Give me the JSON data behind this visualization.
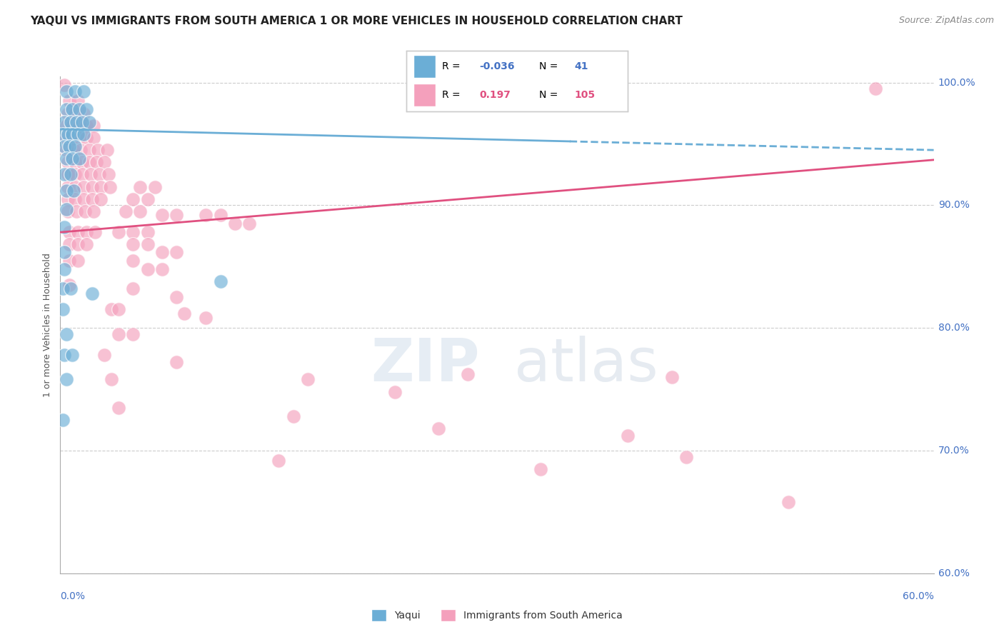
{
  "title": "YAQUI VS IMMIGRANTS FROM SOUTH AMERICA 1 OR MORE VEHICLES IN HOUSEHOLD CORRELATION CHART",
  "source": "Source: ZipAtlas.com",
  "ylabel_label": "1 or more Vehicles in Household",
  "legend_label_blue": "Yaqui",
  "legend_label_pink": "Immigrants from South America",
  "R_blue": -0.036,
  "N_blue": 41,
  "R_pink": 0.197,
  "N_pink": 105,
  "xmin": 0.0,
  "xmax": 0.6,
  "ymin": 0.6,
  "ymax": 1.005,
  "blue_color": "#6baed6",
  "pink_color": "#f4a0bc",
  "blue_line": [
    [
      0.0,
      0.962
    ],
    [
      0.6,
      0.945
    ]
  ],
  "pink_line_solid": [
    [
      0.0,
      0.878
    ],
    [
      0.35,
      0.912
    ]
  ],
  "pink_line_dashed_start": 0.35,
  "pink_line": [
    [
      0.0,
      0.878
    ],
    [
      0.6,
      0.937
    ]
  ],
  "blue_dashed_line": [
    [
      0.35,
      0.95
    ],
    [
      0.6,
      0.945
    ]
  ],
  "grid_color": "#cccccc",
  "grid_linestyle": "--",
  "bg_color": "#ffffff",
  "blue_scatter": [
    [
      0.004,
      0.993
    ],
    [
      0.01,
      0.993
    ],
    [
      0.016,
      0.993
    ],
    [
      0.004,
      0.978
    ],
    [
      0.008,
      0.978
    ],
    [
      0.013,
      0.978
    ],
    [
      0.018,
      0.978
    ],
    [
      0.003,
      0.968
    ],
    [
      0.007,
      0.968
    ],
    [
      0.011,
      0.968
    ],
    [
      0.015,
      0.968
    ],
    [
      0.02,
      0.968
    ],
    [
      0.002,
      0.958
    ],
    [
      0.005,
      0.958
    ],
    [
      0.008,
      0.958
    ],
    [
      0.012,
      0.958
    ],
    [
      0.016,
      0.958
    ],
    [
      0.003,
      0.948
    ],
    [
      0.006,
      0.948
    ],
    [
      0.01,
      0.948
    ],
    [
      0.004,
      0.938
    ],
    [
      0.008,
      0.938
    ],
    [
      0.013,
      0.938
    ],
    [
      0.003,
      0.925
    ],
    [
      0.007,
      0.925
    ],
    [
      0.004,
      0.912
    ],
    [
      0.009,
      0.912
    ],
    [
      0.004,
      0.897
    ],
    [
      0.003,
      0.882
    ],
    [
      0.003,
      0.862
    ],
    [
      0.003,
      0.848
    ],
    [
      0.002,
      0.832
    ],
    [
      0.007,
      0.832
    ],
    [
      0.002,
      0.815
    ],
    [
      0.004,
      0.795
    ],
    [
      0.003,
      0.778
    ],
    [
      0.008,
      0.778
    ],
    [
      0.004,
      0.758
    ],
    [
      0.11,
      0.838
    ],
    [
      0.002,
      0.725
    ],
    [
      0.022,
      0.828
    ]
  ],
  "pink_scatter": [
    [
      0.003,
      0.998
    ],
    [
      0.006,
      0.985
    ],
    [
      0.012,
      0.985
    ],
    [
      0.005,
      0.975
    ],
    [
      0.01,
      0.975
    ],
    [
      0.016,
      0.975
    ],
    [
      0.004,
      0.965
    ],
    [
      0.008,
      0.965
    ],
    [
      0.013,
      0.965
    ],
    [
      0.018,
      0.965
    ],
    [
      0.023,
      0.965
    ],
    [
      0.004,
      0.955
    ],
    [
      0.008,
      0.955
    ],
    [
      0.013,
      0.955
    ],
    [
      0.018,
      0.955
    ],
    [
      0.023,
      0.955
    ],
    [
      0.004,
      0.945
    ],
    [
      0.009,
      0.945
    ],
    [
      0.014,
      0.945
    ],
    [
      0.02,
      0.945
    ],
    [
      0.026,
      0.945
    ],
    [
      0.032,
      0.945
    ],
    [
      0.005,
      0.935
    ],
    [
      0.01,
      0.935
    ],
    [
      0.015,
      0.935
    ],
    [
      0.02,
      0.935
    ],
    [
      0.025,
      0.935
    ],
    [
      0.03,
      0.935
    ],
    [
      0.005,
      0.925
    ],
    [
      0.01,
      0.925
    ],
    [
      0.015,
      0.925
    ],
    [
      0.021,
      0.925
    ],
    [
      0.027,
      0.925
    ],
    [
      0.033,
      0.925
    ],
    [
      0.005,
      0.915
    ],
    [
      0.01,
      0.915
    ],
    [
      0.016,
      0.915
    ],
    [
      0.022,
      0.915
    ],
    [
      0.028,
      0.915
    ],
    [
      0.034,
      0.915
    ],
    [
      0.055,
      0.915
    ],
    [
      0.065,
      0.915
    ],
    [
      0.005,
      0.905
    ],
    [
      0.01,
      0.905
    ],
    [
      0.016,
      0.905
    ],
    [
      0.022,
      0.905
    ],
    [
      0.028,
      0.905
    ],
    [
      0.05,
      0.905
    ],
    [
      0.06,
      0.905
    ],
    [
      0.005,
      0.895
    ],
    [
      0.011,
      0.895
    ],
    [
      0.017,
      0.895
    ],
    [
      0.023,
      0.895
    ],
    [
      0.045,
      0.895
    ],
    [
      0.055,
      0.895
    ],
    [
      0.07,
      0.892
    ],
    [
      0.08,
      0.892
    ],
    [
      0.1,
      0.892
    ],
    [
      0.11,
      0.892
    ],
    [
      0.12,
      0.885
    ],
    [
      0.13,
      0.885
    ],
    [
      0.006,
      0.878
    ],
    [
      0.012,
      0.878
    ],
    [
      0.018,
      0.878
    ],
    [
      0.024,
      0.878
    ],
    [
      0.04,
      0.878
    ],
    [
      0.05,
      0.878
    ],
    [
      0.06,
      0.878
    ],
    [
      0.006,
      0.868
    ],
    [
      0.012,
      0.868
    ],
    [
      0.018,
      0.868
    ],
    [
      0.05,
      0.868
    ],
    [
      0.06,
      0.868
    ],
    [
      0.07,
      0.862
    ],
    [
      0.08,
      0.862
    ],
    [
      0.006,
      0.855
    ],
    [
      0.012,
      0.855
    ],
    [
      0.05,
      0.855
    ],
    [
      0.06,
      0.848
    ],
    [
      0.07,
      0.848
    ],
    [
      0.006,
      0.835
    ],
    [
      0.05,
      0.832
    ],
    [
      0.08,
      0.825
    ],
    [
      0.035,
      0.815
    ],
    [
      0.04,
      0.815
    ],
    [
      0.085,
      0.812
    ],
    [
      0.1,
      0.808
    ],
    [
      0.04,
      0.795
    ],
    [
      0.05,
      0.795
    ],
    [
      0.03,
      0.778
    ],
    [
      0.08,
      0.772
    ],
    [
      0.035,
      0.758
    ],
    [
      0.28,
      0.762
    ],
    [
      0.23,
      0.748
    ],
    [
      0.17,
      0.758
    ],
    [
      0.04,
      0.735
    ],
    [
      0.16,
      0.728
    ],
    [
      0.26,
      0.718
    ],
    [
      0.39,
      0.712
    ],
    [
      0.5,
      0.658
    ],
    [
      0.56,
      0.995
    ],
    [
      0.43,
      0.695
    ],
    [
      0.15,
      0.692
    ],
    [
      0.33,
      0.685
    ],
    [
      0.42,
      0.76
    ]
  ],
  "y_ticks": [
    0.6,
    0.7,
    0.8,
    0.9,
    1.0
  ],
  "y_tick_labels": [
    "60.0%",
    "70.0%",
    "80.0%",
    "90.0%",
    "100.0%"
  ],
  "x_tick_label_left": "0.0%",
  "x_tick_label_right": "60.0%"
}
